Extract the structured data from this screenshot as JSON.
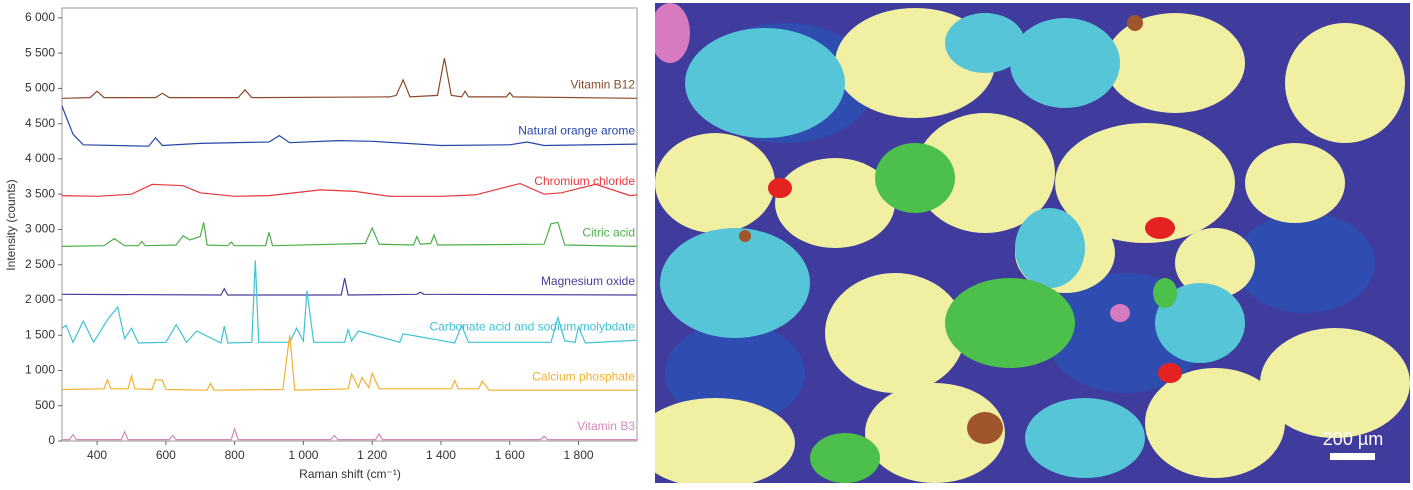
{
  "chart_data": {
    "type": "line",
    "x_label": "Raman shift (cm⁻¹)",
    "y_label": "Intensity (counts)",
    "xlim": [
      298,
      1970
    ],
    "ylim": [
      0,
      6140
    ],
    "xticks": [
      400,
      600,
      800,
      {
        "value": 1000,
        "label": "1 000"
      },
      {
        "value": 1200,
        "label": "1 200"
      },
      {
        "value": 1400,
        "label": "1 400"
      },
      {
        "value": 1600,
        "label": "1 600"
      },
      {
        "value": 1800,
        "label": "1 800"
      }
    ],
    "yticks": [
      0,
      500,
      {
        "value": 1000,
        "label": "1 000"
      },
      {
        "value": 1500,
        "label": "1 500"
      },
      {
        "value": 2000,
        "label": "2 000"
      },
      {
        "value": 2500,
        "label": "2 500"
      },
      {
        "value": 3000,
        "label": "3 000"
      },
      {
        "value": 3500,
        "label": "3 500"
      },
      {
        "value": 4000,
        "label": "4 000"
      },
      {
        "value": 4500,
        "label": "4 500"
      },
      {
        "value": 5000,
        "label": "5 000"
      },
      {
        "value": 5500,
        "label": "5 500"
      },
      {
        "value": 6000,
        "label": "6 000"
      }
    ],
    "series": [
      {
        "name": "Vitamin B12",
        "color": "#8b4a2b",
        "x": [
          298,
          380,
          400,
          420,
          570,
          590,
          610,
          810,
          830,
          850,
          1250,
          1270,
          1290,
          1310,
          1390,
          1410,
          1430,
          1460,
          1470,
          1480,
          1590,
          1600,
          1610,
          1970
        ],
        "values": [
          4860,
          4870,
          4960,
          4870,
          4870,
          4930,
          4870,
          4870,
          4980,
          4870,
          4880,
          4900,
          5120,
          4880,
          4900,
          5430,
          4900,
          4880,
          4960,
          4880,
          4880,
          4940,
          4880,
          4860
        ]
      },
      {
        "name": "Natural orange arome",
        "color": "#2446a8",
        "x": [
          298,
          310,
          330,
          360,
          550,
          570,
          590,
          700,
          900,
          930,
          960,
          1100,
          1200,
          1300,
          1400,
          1600,
          1650,
          1700,
          1970
        ],
        "values": [
          4750,
          4600,
          4350,
          4200,
          4180,
          4300,
          4190,
          4220,
          4240,
          4330,
          4230,
          4260,
          4250,
          4220,
          4190,
          4200,
          4240,
          4190,
          4210
        ]
      },
      {
        "name": "Chromium chloride",
        "color": "#e8373c",
        "x": [
          298,
          400,
          500,
          560,
          650,
          700,
          800,
          900,
          1050,
          1150,
          1250,
          1400,
          1500,
          1580,
          1630,
          1700,
          1750,
          1850,
          1950,
          1970
        ],
        "values": [
          3480,
          3470,
          3500,
          3640,
          3620,
          3520,
          3470,
          3480,
          3560,
          3540,
          3470,
          3470,
          3490,
          3590,
          3650,
          3500,
          3520,
          3640,
          3480,
          3490
        ]
      },
      {
        "name": "Citric acid",
        "color": "#4cb04a",
        "x": [
          298,
          420,
          450,
          480,
          520,
          530,
          540,
          630,
          650,
          670,
          700,
          710,
          720,
          780,
          790,
          800,
          890,
          900,
          910,
          1180,
          1200,
          1220,
          1320,
          1330,
          1340,
          1370,
          1380,
          1390,
          1700,
          1720,
          1740,
          1760,
          1970
        ],
        "values": [
          2760,
          2770,
          2870,
          2770,
          2770,
          2830,
          2770,
          2780,
          2910,
          2850,
          2900,
          3100,
          2780,
          2770,
          2820,
          2770,
          2770,
          2960,
          2770,
          2800,
          3020,
          2790,
          2780,
          2900,
          2790,
          2800,
          2920,
          2780,
          2790,
          3080,
          3100,
          2780,
          2760
        ]
      },
      {
        "name": "Magnesium oxide",
        "color": "#4a3c9c",
        "x": [
          298,
          760,
          770,
          780,
          1110,
          1120,
          1130,
          1330,
          1340,
          1350,
          1970
        ],
        "values": [
          2080,
          2070,
          2160,
          2070,
          2070,
          2310,
          2070,
          2080,
          2110,
          2080,
          2070
        ]
      },
      {
        "name": "Carbonate acid and sodium molybdate",
        "color": "#3ec3d6",
        "x": [
          298,
          310,
          330,
          360,
          390,
          430,
          460,
          480,
          500,
          520,
          600,
          630,
          660,
          690,
          760,
          770,
          780,
          850,
          860,
          870,
          960,
          980,
          1000,
          1010,
          1030,
          1120,
          1130,
          1140,
          1160,
          1280,
          1290,
          1440,
          1460,
          1480,
          1720,
          1740,
          1760,
          1790,
          1800,
          1820,
          1970
        ],
        "values": [
          1600,
          1640,
          1400,
          1700,
          1400,
          1720,
          1900,
          1450,
          1600,
          1390,
          1400,
          1650,
          1400,
          1560,
          1390,
          1630,
          1390,
          1400,
          2560,
          1400,
          1400,
          1600,
          1420,
          2130,
          1400,
          1400,
          1580,
          1420,
          1560,
          1400,
          1520,
          1390,
          1640,
          1400,
          1400,
          1750,
          1420,
          1400,
          1620,
          1390,
          1430
        ]
      },
      {
        "name": "Calcium phosphate",
        "color": "#f2b12e",
        "x": [
          298,
          420,
          430,
          440,
          490,
          500,
          510,
          560,
          570,
          590,
          600,
          720,
          730,
          740,
          940,
          960,
          975,
          1130,
          1140,
          1160,
          1170,
          1190,
          1200,
          1220,
          1430,
          1440,
          1450,
          1510,
          1520,
          1540,
          1970
        ],
        "values": [
          730,
          740,
          870,
          740,
          740,
          920,
          740,
          730,
          870,
          860,
          730,
          720,
          820,
          720,
          730,
          1500,
          720,
          740,
          950,
          760,
          900,
          760,
          960,
          740,
          740,
          860,
          740,
          740,
          850,
          720,
          720
        ]
      },
      {
        "name": "Vitamin B3",
        "color": "#d68ab8",
        "x": [
          298,
          320,
          330,
          340,
          470,
          480,
          490,
          610,
          620,
          630,
          790,
          800,
          810,
          1080,
          1090,
          1100,
          1210,
          1220,
          1230,
          1690,
          1700,
          1710,
          1970
        ],
        "values": [
          20,
          20,
          90,
          20,
          20,
          130,
          20,
          20,
          80,
          20,
          20,
          170,
          20,
          20,
          80,
          20,
          20,
          100,
          20,
          20,
          70,
          20,
          20
        ]
      }
    ]
  },
  "image": {
    "scale_label": "200 µm"
  }
}
